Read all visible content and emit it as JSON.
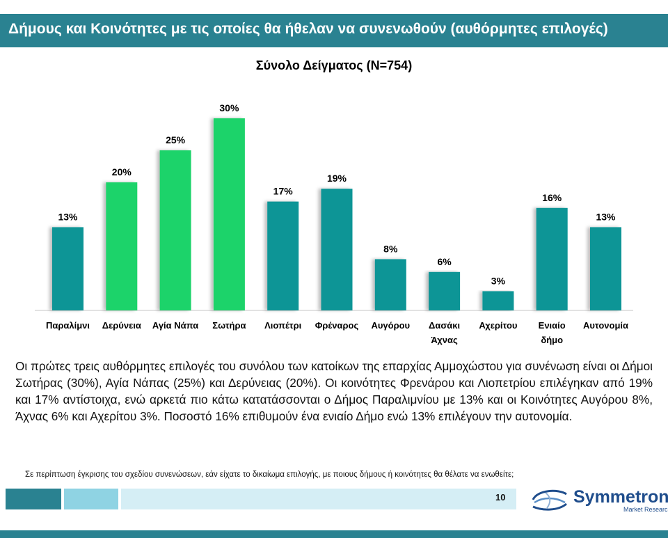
{
  "header": {
    "title": "Δήμους και Κοινότητες με τις οποίες θα ήθελαν να συνενωθούν (αυθόρμητες επιλογές)"
  },
  "chart_data": {
    "type": "bar",
    "title": "Σύνολο Δείγματος (N=754)",
    "categories": [
      [
        "Παραλίμνι"
      ],
      [
        "Δερύνεια"
      ],
      [
        "Αγία Νάπα"
      ],
      [
        "Σωτήρα"
      ],
      [
        "Λιοπέτρι"
      ],
      [
        "Φρέναρος"
      ],
      [
        "Αυγόρου"
      ],
      [
        "Δασάκι",
        "Άχνας"
      ],
      [
        "Αχερίτου"
      ],
      [
        "Ενιαίο",
        "δήμο"
      ],
      [
        "Αυτονομία"
      ]
    ],
    "values": [
      13,
      20,
      25,
      30,
      17,
      19,
      8,
      6,
      3,
      16,
      13
    ],
    "value_labels": [
      "13%",
      "20%",
      "25%",
      "30%",
      "17%",
      "19%",
      "8%",
      "6%",
      "3%",
      "16%",
      "13%"
    ],
    "highlight": [
      false,
      true,
      true,
      true,
      false,
      false,
      false,
      false,
      false,
      false,
      false
    ],
    "colors": {
      "default": "#0b9596",
      "highlight": "#1fd36a"
    },
    "ylim": [
      0,
      30
    ],
    "grid": false,
    "xlabel": "",
    "ylabel": ""
  },
  "summary_text": "Οι πρώτες τρεις αυθόρμητες επιλογές του συνόλου των κατοίκων της επαρχίας Αμμοχώστου για συνένωση είναι οι Δήμοι Σωτήρας (30%), Αγία Νάπας (25%) και Δερύνειας (20%). Οι κοινότητες Φρενάρου και Λιοπετρίου επιλέγηκαν από 19% και 17% αντίστοιχα, ενώ αρκετά πιο κάτω κατατάσσονται ο Δήμος Παραλιμνίου με 13% και οι Κοινότητες Αυγόρου 8%, Άχνας 6% και Αχερίτου 3%. Ποσοστό 16% επιθυμούν ένα ενιαίο Δήμο ενώ 13% επιλέγουν την αυτονομία.",
  "footnote": "Σε περίπτωση έγκρισης του σχεδίου συνενώσεων, εάν είχατε το δικαίωμα επιλογής, με ποιους δήμους ή κοινότητες θα θέλατε να ενωθείτε;",
  "footer": {
    "page_number": "10",
    "logo_name": "Symmetron",
    "logo_sub": "Market Research",
    "colors": [
      "#2a8291",
      "#8fd3e3",
      "#d5eef5"
    ]
  }
}
